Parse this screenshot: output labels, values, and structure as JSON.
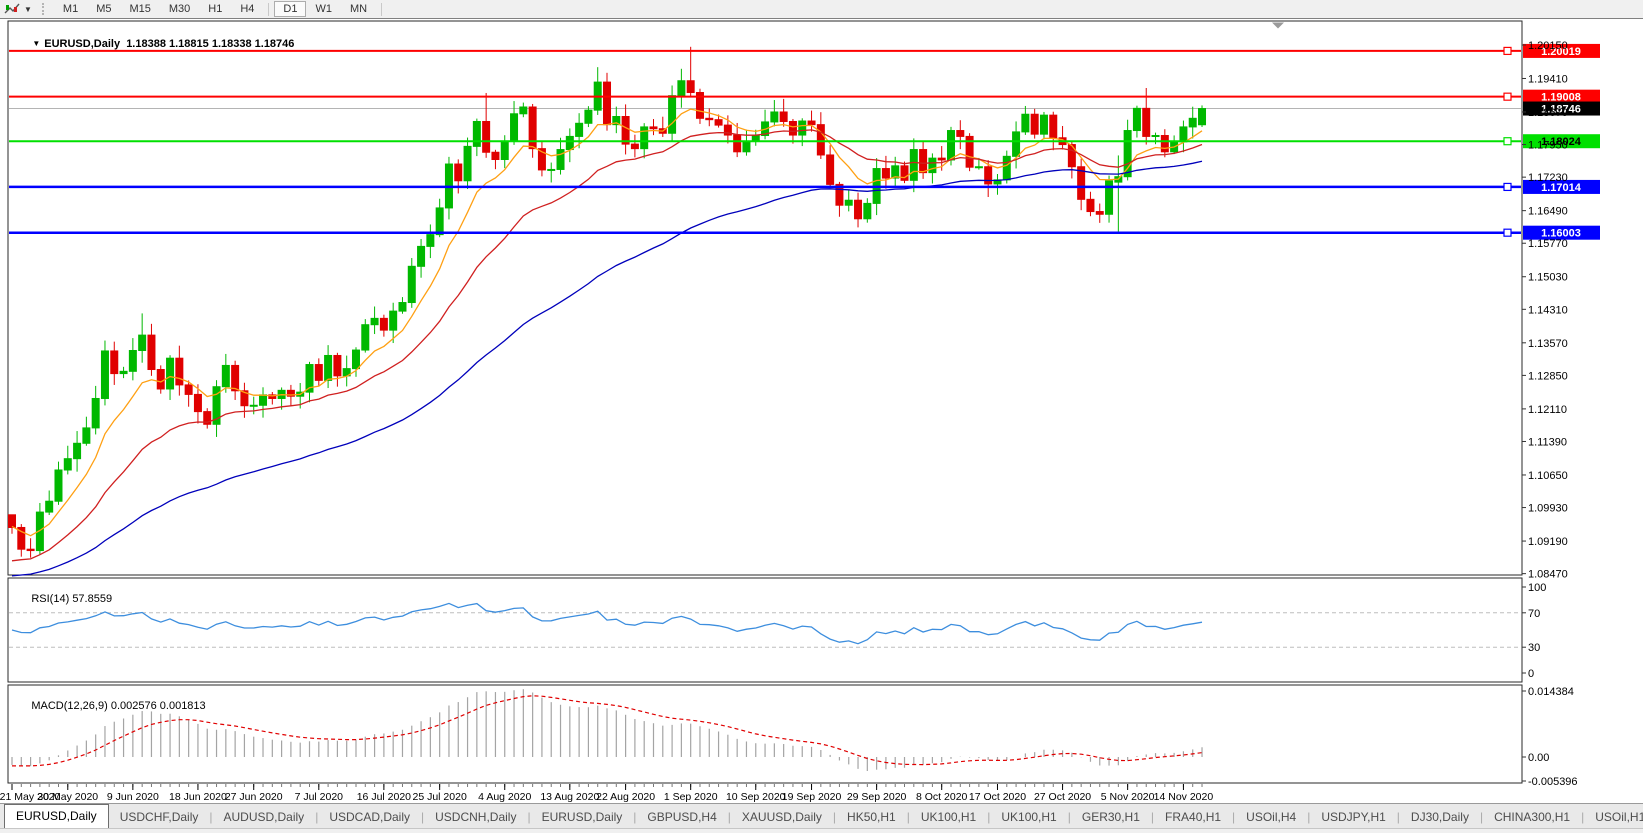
{
  "toolbar": {
    "timeframes": [
      {
        "label": "M1",
        "active": false
      },
      {
        "label": "M5",
        "active": false
      },
      {
        "label": "M15",
        "active": false
      },
      {
        "label": "M30",
        "active": false
      },
      {
        "label": "H1",
        "active": false
      },
      {
        "label": "H4",
        "active": false
      },
      {
        "label": "D1",
        "active": true
      },
      {
        "label": "W1",
        "active": false
      },
      {
        "label": "MN",
        "active": false
      }
    ]
  },
  "chart": {
    "title_marker": "▼",
    "symbol_period": "EURUSD,Daily",
    "ohlc_display": "1.18388 1.18815 1.18338 1.18746"
  },
  "chart_data": {
    "type": "candlestick",
    "symbol": "EURUSD",
    "timeframe": "Daily",
    "last_candle": {
      "open": "1.18388",
      "high": "1.18815",
      "low": "1.18338",
      "close": "1.18746"
    },
    "price_axis": {
      "min": 1.0844,
      "max": 1.2068,
      "ticks": [
        "1.20150",
        "1.19410",
        "1.18670",
        "1.17950",
        "1.17230",
        "1.16490",
        "1.15770",
        "1.15030",
        "1.14310",
        "1.13570",
        "1.12850",
        "1.12110",
        "1.11390",
        "1.10650",
        "1.09930",
        "1.09190",
        "1.08470"
      ]
    },
    "x_labels": [
      "21 May 2020",
      "30 May 2020",
      "9 Jun 2020",
      "18 Jun 2020",
      "27 Jun 2020",
      "7 Jul 2020",
      "16 Jul 2020",
      "25 Jul 2020",
      "4 Aug 2020",
      "13 Aug 2020",
      "22 Aug 2020",
      "1 Sep 2020",
      "10 Sep 2020",
      "19 Sep 2020",
      "29 Sep 2020",
      "8 Oct 2020",
      "17 Oct 2020",
      "27 Oct 2020",
      "5 Nov 2020",
      "14 Nov 2020"
    ],
    "x_label_candle_index": [
      0,
      6,
      13,
      20,
      26,
      33,
      40,
      46,
      53,
      60,
      66,
      73,
      80,
      86,
      93,
      100,
      106,
      113,
      120,
      126
    ],
    "horizontal_lines": [
      {
        "price": 1.20019,
        "label": "1.20019",
        "color": "#fe0000",
        "text_color": "#ffffff",
        "width": 2
      },
      {
        "price": 1.19008,
        "label": "1.19008",
        "color": "#fe0000",
        "text_color": "#ffffff",
        "width": 2
      },
      {
        "price": 1.18024,
        "label": "1.18024",
        "color": "#00e000",
        "text_color": "#000000",
        "width": 2
      },
      {
        "price": 1.17014,
        "label": "1.17014",
        "color": "#0000ff",
        "text_color": "#ffffff",
        "width": 2.5
      },
      {
        "price": 1.16003,
        "label": "1.16003",
        "color": "#0000ff",
        "text_color": "#ffffff",
        "width": 2.5
      }
    ],
    "current_price": {
      "value": 1.18746,
      "label": "1.18746",
      "line_color": "#b4b4b4",
      "label_bg": "#000000",
      "label_fg": "#ffffff"
    },
    "candles": {
      "up_color": "#00b800",
      "down_color": "#e00000",
      "closes": [
        1.0949,
        1.0901,
        1.0898,
        1.0983,
        1.1007,
        1.1076,
        1.1101,
        1.1135,
        1.1169,
        1.1234,
        1.1339,
        1.1289,
        1.1294,
        1.134,
        1.1374,
        1.1298,
        1.1255,
        1.1323,
        1.1264,
        1.1243,
        1.1205,
        1.1177,
        1.126,
        1.1307,
        1.1251,
        1.1218,
        1.1219,
        1.1242,
        1.1234,
        1.1252,
        1.1239,
        1.1248,
        1.1309,
        1.1274,
        1.1329,
        1.1284,
        1.13,
        1.1341,
        1.1397,
        1.1411,
        1.1385,
        1.1427,
        1.1446,
        1.1526,
        1.157,
        1.1596,
        1.1655,
        1.1752,
        1.1715,
        1.1791,
        1.1846,
        1.1778,
        1.1762,
        1.1803,
        1.1863,
        1.1878,
        1.1786,
        1.1739,
        1.174,
        1.1784,
        1.1813,
        1.1842,
        1.1871,
        1.1933,
        1.1839,
        1.1857,
        1.1796,
        1.1786,
        1.1834,
        1.183,
        1.182,
        1.1903,
        1.1936,
        1.191,
        1.1853,
        1.185,
        1.1838,
        1.1816,
        1.1779,
        1.1802,
        1.1815,
        1.1845,
        1.1867,
        1.1846,
        1.1816,
        1.1847,
        1.1839,
        1.1772,
        1.1707,
        1.1661,
        1.1672,
        1.1631,
        1.1665,
        1.1742,
        1.1721,
        1.1748,
        1.1716,
        1.1784,
        1.1733,
        1.1765,
        1.1761,
        1.1826,
        1.1813,
        1.1745,
        1.1746,
        1.1708,
        1.1717,
        1.1769,
        1.1823,
        1.1862,
        1.1818,
        1.186,
        1.181,
        1.1795,
        1.1746,
        1.1674,
        1.1647,
        1.1641,
        1.1715,
        1.1724,
        1.1826,
        1.1875,
        1.1813,
        1.1815,
        1.1779,
        1.1801,
        1.1834,
        1.1853,
        1.18746
      ],
      "ohlc_overrides": {
        "0": {
          "o": 1.0977,
          "l": 1.0935
        },
        "10": {
          "h": 1.1362
        },
        "14": {
          "h": 1.1422
        },
        "51": {
          "h": 1.1909
        },
        "63": {
          "h": 1.1966
        },
        "73": {
          "h": 1.2011
        },
        "91": {
          "l": 1.1612
        },
        "115": {
          "l": 1.165
        },
        "117": {
          "l": 1.1622
        },
        "119": {
          "o": 1.1712,
          "h": 1.1771,
          "l": 1.1603
        },
        "122": {
          "h": 1.192,
          "l": 1.1795
        },
        "128": {
          "o": 1.18388,
          "h": 1.18815,
          "l": 1.18338
        }
      }
    },
    "moving_averages": [
      {
        "name": "fast-ma",
        "period": 8,
        "seed": 1.0952,
        "color": "#ffa013"
      },
      {
        "name": "mid-ma",
        "period": 21,
        "seed": 1.0868,
        "color": "#d02020"
      },
      {
        "name": "slow-ma",
        "period": 55,
        "seed": 1.0838,
        "color": "#0000bb"
      }
    ],
    "rsi": {
      "name": "RSI(14)",
      "value": "57.8559",
      "period": 14,
      "color": "#3d8ede",
      "levels": [
        70,
        30
      ],
      "axis_labels": [
        "100",
        "70",
        "30",
        "0"
      ],
      "axis_values": [
        100,
        70,
        30,
        0
      ]
    },
    "macd": {
      "name": "MACD(12,26,9)",
      "value_main": "0.002576",
      "value_signal": "0.001813",
      "fast": 12,
      "slow": 26,
      "signal": 9,
      "histogram_color": "#a4a4a4",
      "signal_color": "#e00000",
      "axis_labels": [
        "0.014384",
        "0.00",
        "-0.005396"
      ],
      "axis_values": [
        0.014384,
        0,
        -0.005396
      ]
    }
  },
  "tabs": [
    {
      "label": "EURUSD,Daily",
      "active": true
    },
    {
      "label": "USDCHF,Daily",
      "active": false
    },
    {
      "label": "AUDUSD,Daily",
      "active": false
    },
    {
      "label": "USDCAD,Daily",
      "active": false
    },
    {
      "label": "USDCNH,Daily",
      "active": false
    },
    {
      "label": "EURUSD,Daily",
      "active": false
    },
    {
      "label": "GBPUSD,H4",
      "active": false
    },
    {
      "label": "XAUUSD,Daily",
      "active": false
    },
    {
      "label": "HK50,H1",
      "active": false
    },
    {
      "label": "UK100,H1",
      "active": false
    },
    {
      "label": "UK100,H1",
      "active": false
    },
    {
      "label": "GER30,H1",
      "active": false
    },
    {
      "label": "FRA40,H1",
      "active": false
    },
    {
      "label": "USOil,H4",
      "active": false
    },
    {
      "label": "USDJPY,H1",
      "active": false
    },
    {
      "label": "DJ30,Daily",
      "active": false
    },
    {
      "label": "CHINA300,H1",
      "active": false
    },
    {
      "label": "USOil,H1",
      "active": false
    }
  ]
}
